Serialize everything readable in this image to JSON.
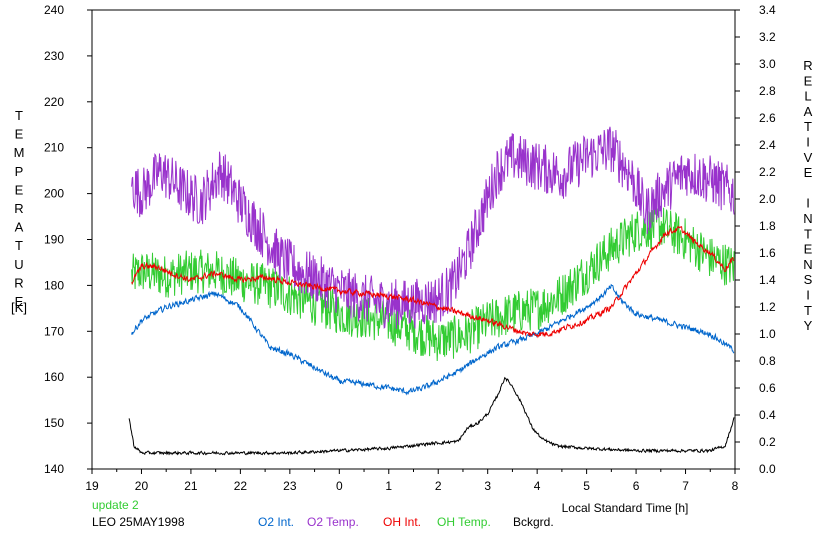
{
  "chart_data": {
    "type": "line",
    "left_axis": {
      "label_letters": [
        "T",
        "E",
        "M",
        "P",
        "E",
        "R",
        "A",
        "T",
        "U",
        "R",
        "E"
      ],
      "unit": "[K]",
      "ylim": [
        140,
        240
      ],
      "ticks": [
        "140",
        "150",
        "160",
        "170",
        "180",
        "190",
        "200",
        "210",
        "220",
        "230",
        "240"
      ]
    },
    "right_axis": {
      "label_letters": [
        "R",
        "E",
        "L",
        "A",
        "T",
        "I",
        "V",
        "E",
        "",
        "I",
        "N",
        "T",
        "E",
        "N",
        "S",
        "I",
        "T",
        "Y"
      ],
      "ylim": [
        0,
        3.4
      ],
      "ticks": [
        "0.0",
        "0.2",
        "0.4",
        "0.6",
        "0.8",
        "1.0",
        "1.2",
        "1.4",
        "1.6",
        "1.8",
        "2.0",
        "2.2",
        "2.4",
        "2.6",
        "2.8",
        "3.0",
        "3.2",
        "3.4"
      ]
    },
    "x_axis": {
      "label": "Local Standard Time [h]",
      "ticks": [
        "19",
        "20",
        "21",
        "22",
        "23",
        "0",
        "1",
        "2",
        "3",
        "4",
        "5",
        "6",
        "7",
        "8"
      ],
      "range_hours": [
        19,
        32
      ]
    },
    "status": "update 2",
    "station": "LEO 25MAY1998",
    "series": [
      {
        "name": "O2 Int.",
        "color": "#0066cc",
        "axis": "right",
        "noise": 0.03,
        "points": [
          [
            19.8,
            1.0
          ],
          [
            20.0,
            1.1
          ],
          [
            20.5,
            1.2
          ],
          [
            21.0,
            1.25
          ],
          [
            21.5,
            1.3
          ],
          [
            22.0,
            1.2
          ],
          [
            22.3,
            1.05
          ],
          [
            22.6,
            0.9
          ],
          [
            23.0,
            0.85
          ],
          [
            23.5,
            0.75
          ],
          [
            24.0,
            0.65
          ],
          [
            24.5,
            0.63
          ],
          [
            25.0,
            0.6
          ],
          [
            25.4,
            0.57
          ],
          [
            25.7,
            0.6
          ],
          [
            26.0,
            0.65
          ],
          [
            26.4,
            0.72
          ],
          [
            26.8,
            0.82
          ],
          [
            27.2,
            0.9
          ],
          [
            27.6,
            0.95
          ],
          [
            28.0,
            1.0
          ],
          [
            28.5,
            1.1
          ],
          [
            29.0,
            1.2
          ],
          [
            29.3,
            1.28
          ],
          [
            29.5,
            1.35
          ],
          [
            29.7,
            1.25
          ],
          [
            30.0,
            1.15
          ],
          [
            30.5,
            1.1
          ],
          [
            31.0,
            1.05
          ],
          [
            31.5,
            1.0
          ],
          [
            31.98,
            0.88
          ]
        ]
      },
      {
        "name": "O2 Temp.",
        "color": "#9933cc",
        "axis": "left",
        "noise": 5.5,
        "points": [
          [
            19.8,
            202
          ],
          [
            20.0,
            200
          ],
          [
            20.4,
            205
          ],
          [
            20.8,
            201
          ],
          [
            21.2,
            198
          ],
          [
            21.6,
            205
          ],
          [
            22.0,
            198
          ],
          [
            22.4,
            192
          ],
          [
            22.8,
            186
          ],
          [
            23.2,
            183
          ],
          [
            23.6,
            181
          ],
          [
            24.0,
            179
          ],
          [
            24.5,
            177
          ],
          [
            25.0,
            176
          ],
          [
            25.5,
            176
          ],
          [
            26.0,
            177
          ],
          [
            26.3,
            180
          ],
          [
            26.6,
            187
          ],
          [
            26.9,
            196
          ],
          [
            27.2,
            205
          ],
          [
            27.5,
            208
          ],
          [
            28.0,
            206
          ],
          [
            28.5,
            204
          ],
          [
            29.0,
            208
          ],
          [
            29.5,
            210
          ],
          [
            29.9,
            204
          ],
          [
            30.2,
            196
          ],
          [
            30.5,
            200
          ],
          [
            31.0,
            205
          ],
          [
            31.5,
            203
          ],
          [
            31.98,
            200
          ]
        ]
      },
      {
        "name": "OH Int.",
        "color": "#ee0000",
        "axis": "right",
        "noise": 0.03,
        "points": [
          [
            19.8,
            1.38
          ],
          [
            20.0,
            1.5
          ],
          [
            20.3,
            1.5
          ],
          [
            20.6,
            1.45
          ],
          [
            21.0,
            1.4
          ],
          [
            21.5,
            1.45
          ],
          [
            22.0,
            1.4
          ],
          [
            22.5,
            1.42
          ],
          [
            23.0,
            1.38
          ],
          [
            23.5,
            1.35
          ],
          [
            24.0,
            1.32
          ],
          [
            24.5,
            1.3
          ],
          [
            25.0,
            1.28
          ],
          [
            25.5,
            1.25
          ],
          [
            26.0,
            1.2
          ],
          [
            26.5,
            1.15
          ],
          [
            27.0,
            1.1
          ],
          [
            27.4,
            1.05
          ],
          [
            27.8,
            1.0
          ],
          [
            28.2,
            1.0
          ],
          [
            28.6,
            1.05
          ],
          [
            29.0,
            1.1
          ],
          [
            29.5,
            1.2
          ],
          [
            29.9,
            1.4
          ],
          [
            30.3,
            1.6
          ],
          [
            30.6,
            1.75
          ],
          [
            30.9,
            1.78
          ],
          [
            31.2,
            1.68
          ],
          [
            31.5,
            1.6
          ],
          [
            31.8,
            1.48
          ],
          [
            31.98,
            1.56
          ]
        ]
      },
      {
        "name": "OH Temp.",
        "color": "#33cc33",
        "axis": "left",
        "noise": 4.8,
        "points": [
          [
            19.8,
            182
          ],
          [
            20.0,
            183
          ],
          [
            20.5,
            182
          ],
          [
            21.0,
            183
          ],
          [
            21.5,
            183
          ],
          [
            22.0,
            181
          ],
          [
            22.5,
            180
          ],
          [
            23.0,
            178
          ],
          [
            23.5,
            176
          ],
          [
            24.0,
            174
          ],
          [
            24.5,
            173
          ],
          [
            25.0,
            172
          ],
          [
            25.5,
            170
          ],
          [
            26.0,
            168
          ],
          [
            26.5,
            169
          ],
          [
            27.0,
            172
          ],
          [
            27.5,
            174
          ],
          [
            28.0,
            175
          ],
          [
            28.5,
            178
          ],
          [
            29.0,
            183
          ],
          [
            29.5,
            188
          ],
          [
            30.0,
            192
          ],
          [
            30.5,
            193
          ],
          [
            31.0,
            190
          ],
          [
            31.5,
            186
          ],
          [
            31.98,
            184
          ]
        ]
      },
      {
        "name": "Bckgrd.",
        "color": "#000000",
        "axis": "left",
        "noise": 0.45,
        "points": [
          [
            19.75,
            151
          ],
          [
            19.85,
            145
          ],
          [
            20.0,
            143.5
          ],
          [
            21.0,
            143.5
          ],
          [
            22.0,
            143.5
          ],
          [
            23.0,
            143.5
          ],
          [
            24.0,
            144
          ],
          [
            25.0,
            144.5
          ],
          [
            25.8,
            145.5
          ],
          [
            26.4,
            146
          ],
          [
            26.6,
            149
          ],
          [
            26.8,
            150
          ],
          [
            27.0,
            152
          ],
          [
            27.2,
            156
          ],
          [
            27.35,
            160
          ],
          [
            27.5,
            158
          ],
          [
            27.7,
            154
          ],
          [
            27.9,
            149
          ],
          [
            28.1,
            146.5
          ],
          [
            28.4,
            145
          ],
          [
            29.0,
            144.5
          ],
          [
            30.0,
            144
          ],
          [
            31.0,
            144
          ],
          [
            31.5,
            144
          ],
          [
            31.8,
            145
          ],
          [
            31.98,
            151
          ]
        ]
      }
    ]
  }
}
